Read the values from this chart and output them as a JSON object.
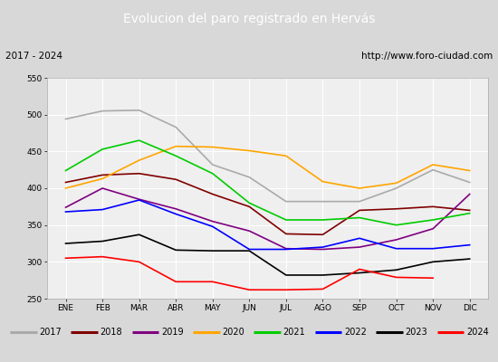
{
  "title": "Evolucion del paro registrado en Hervás",
  "subtitle_left": "2017 - 2024",
  "subtitle_right": "http://www.foro-ciudad.com",
  "xlabel_months": [
    "ENE",
    "FEB",
    "MAR",
    "ABR",
    "MAY",
    "JUN",
    "JUL",
    "AGO",
    "SEP",
    "OCT",
    "NOV",
    "DIC"
  ],
  "ylim": [
    250,
    550
  ],
  "yticks": [
    250,
    300,
    350,
    400,
    450,
    500,
    550
  ],
  "series": {
    "2017": {
      "color": "#aaaaaa",
      "data": [
        494,
        505,
        506,
        483,
        432,
        415,
        382,
        382,
        382,
        400,
        425,
        408
      ]
    },
    "2018": {
      "color": "#800000",
      "data": [
        408,
        418,
        420,
        412,
        392,
        375,
        338,
        337,
        370,
        372,
        375,
        370
      ]
    },
    "2019": {
      "color": "#800080",
      "data": [
        374,
        400,
        385,
        372,
        355,
        342,
        318,
        317,
        320,
        330,
        345,
        392
      ]
    },
    "2020": {
      "color": "#ffa500",
      "data": [
        400,
        413,
        438,
        457,
        456,
        451,
        444,
        409,
        400,
        407,
        432,
        424
      ]
    },
    "2021": {
      "color": "#00cc00",
      "data": [
        424,
        453,
        465,
        444,
        420,
        380,
        357,
        357,
        360,
        350,
        357,
        366
      ]
    },
    "2022": {
      "color": "#0000ff",
      "data": [
        368,
        371,
        384,
        365,
        348,
        317,
        317,
        320,
        332,
        318,
        318,
        323
      ]
    },
    "2023": {
      "color": "#000000",
      "data": [
        325,
        328,
        337,
        316,
        315,
        315,
        282,
        282,
        285,
        289,
        300,
        304
      ]
    },
    "2024": {
      "color": "#ff0000",
      "data": [
        305,
        307,
        300,
        273,
        273,
        262,
        262,
        263,
        290,
        279,
        278,
        null
      ]
    }
  },
  "background_color": "#d8d8d8",
  "plot_bg_color": "#efefef",
  "title_bg_color": "#4472c4",
  "title_text_color": "#ffffff",
  "header_bg_color": "#e8e8e8",
  "legend_bg_color": "#f0f0f0"
}
